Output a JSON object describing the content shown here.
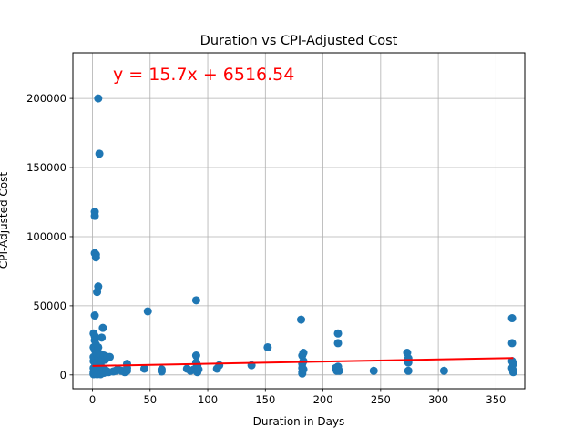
{
  "chart_data": {
    "type": "scatter",
    "title": "Duration vs CPI-Adjusted Cost",
    "xlabel": "Duration in Days",
    "ylabel": "CPI-Adjusted Cost",
    "xlim": [
      -17,
      375
    ],
    "ylim": [
      -10000,
      233000
    ],
    "xticks": [
      0,
      50,
      100,
      150,
      200,
      250,
      300,
      350
    ],
    "yticks": [
      0,
      50000,
      100000,
      150000,
      200000
    ],
    "grid": true,
    "point_color": "#1f77b4",
    "line_color": "#ff0000",
    "annotation": "y = 15.7x + 6516.54",
    "regression": {
      "slope": 15.7,
      "intercept": 6516.54,
      "x_range": [
        0,
        365
      ]
    },
    "series": [
      {
        "x": [
          1,
          1,
          1,
          1,
          1,
          1,
          1,
          1,
          2,
          2,
          2,
          2,
          2,
          2,
          2,
          2,
          2,
          2,
          3,
          3,
          3,
          3,
          3,
          4,
          4,
          4,
          4,
          5,
          5,
          5,
          5,
          5,
          5,
          6,
          6,
          6,
          7,
          7,
          7,
          8,
          8,
          8,
          9,
          9,
          10,
          10,
          11,
          12,
          13,
          14,
          15,
          18,
          20,
          22,
          25,
          28,
          30,
          30,
          30,
          45,
          48,
          60,
          60,
          82,
          85,
          88,
          90,
          90,
          90,
          90,
          91,
          91,
          91,
          92,
          108,
          110,
          138,
          152,
          181,
          182,
          182,
          182,
          182,
          182,
          183,
          183,
          183,
          211,
          212,
          213,
          213,
          213,
          214,
          244,
          273,
          274,
          274,
          274,
          305,
          364,
          364,
          364,
          364,
          365,
          365,
          365
        ],
        "y": [
          5000,
          10000,
          20000,
          30000,
          2000,
          500,
          13000,
          800,
          118000,
          115000,
          88000,
          43000,
          28000,
          25000,
          18000,
          6000,
          3000,
          1000,
          87000,
          85000,
          22000,
          8000,
          2000,
          60000,
          15000,
          9000,
          500,
          200000,
          64000,
          20000,
          12000,
          4000,
          1000,
          160000,
          12000,
          3000,
          15000,
          6000,
          500,
          27000,
          10000,
          2000,
          34000,
          5000,
          14000,
          1500,
          11000,
          3000,
          13000,
          2000,
          13000,
          2500,
          3000,
          4000,
          3000,
          2000,
          8000,
          5000,
          3000,
          4500,
          46000,
          4000,
          2500,
          4500,
          3000,
          4000,
          54000,
          14000,
          9000,
          3000,
          7000,
          5000,
          2000,
          4000,
          4500,
          7000,
          7000,
          20000,
          40000,
          14000,
          8000,
          5000,
          2000,
          1000,
          16000,
          10000,
          4000,
          5000,
          3000,
          30000,
          23000,
          6000,
          3000,
          3000,
          16000,
          12000,
          9000,
          3000,
          3000,
          41000,
          23000,
          10000,
          5000,
          2000,
          8000,
          3000
        ]
      }
    ]
  }
}
